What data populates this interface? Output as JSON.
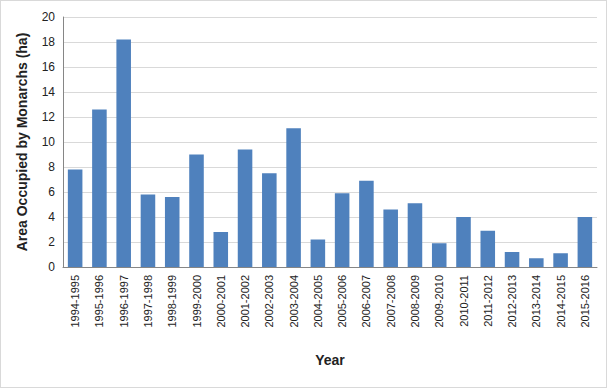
{
  "chart_data": {
    "type": "bar",
    "x_label": "Year",
    "y_label": "Area Occupied by Monarchs (ha)",
    "categories": [
      "1994-1995",
      "1995-1996",
      "1996-1997",
      "1997-1998",
      "1998-1999",
      "1999-2000",
      "2000-2001",
      "2001-2002",
      "2002-2003",
      "2003-2004",
      "2004-2005",
      "2005-2006",
      "2006-2007",
      "2007-2008",
      "2008-2009",
      "2009-2010",
      "2010-2011",
      "2011-2012",
      "2012-2013",
      "2013-2014",
      "2014-2015",
      "2015-2016"
    ],
    "values": [
      7.8,
      12.6,
      18.2,
      5.8,
      5.6,
      9.0,
      2.8,
      9.4,
      7.5,
      11.1,
      2.2,
      5.9,
      6.9,
      4.6,
      5.1,
      1.9,
      4.0,
      2.9,
      1.2,
      0.7,
      1.1,
      4.0
    ],
    "color": "#4f81bd",
    "ylim": [
      0,
      20
    ],
    "yticks": [
      0,
      2,
      4,
      6,
      8,
      10,
      12,
      14,
      16,
      18,
      20
    ],
    "grid": true
  }
}
